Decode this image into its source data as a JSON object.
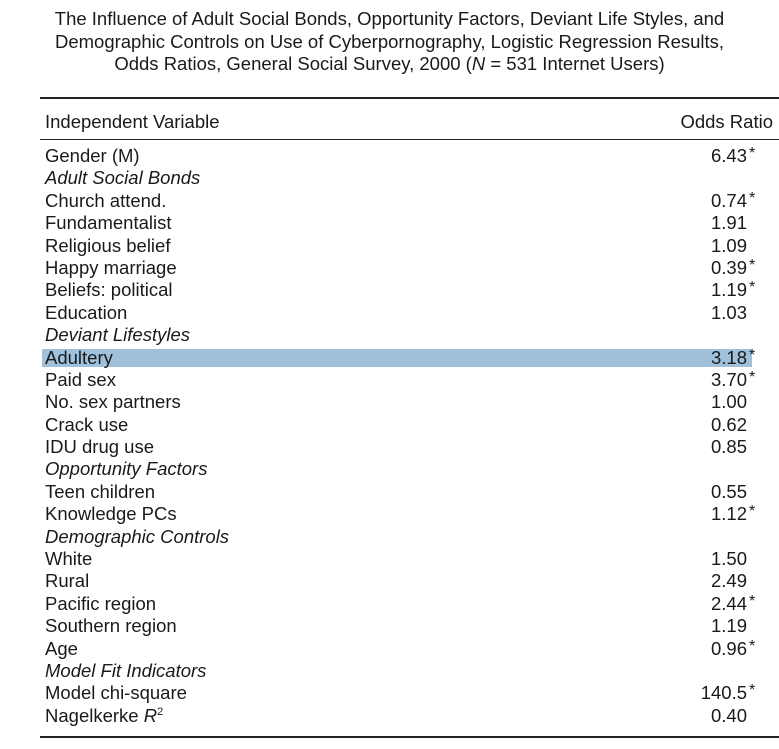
{
  "title": {
    "line1": "The Influence of Adult Social Bonds, Opportunity Factors, Deviant Life Styles, and",
    "line2": "Demographic Controls on Use of Cyberpornography, Logistic Regression Results,",
    "line3_pre": "Odds Ratios, General Social Survey, 2000 (",
    "line3_n": "N",
    "line3_post": " = 531 Internet Users)"
  },
  "header": {
    "left": "Independent Variable",
    "right": "Odds Ratio"
  },
  "rows": [
    {
      "label": "Gender (M)",
      "value": "6.43",
      "star": "*"
    },
    {
      "label": "Adult Social Bonds",
      "section": true
    },
    {
      "label": "Church attend.",
      "value": "0.74",
      "star": "*"
    },
    {
      "label": "Fundamentalist",
      "value": "1.91"
    },
    {
      "label": "Religious belief",
      "value": "1.09"
    },
    {
      "label": "Happy marriage",
      "value": "0.39",
      "star": "*"
    },
    {
      "label": "Beliefs: political",
      "value": "1.19",
      "star": "*"
    },
    {
      "label": "Education",
      "value": "1.03"
    },
    {
      "label": "Deviant Lifestyles",
      "section": true
    },
    {
      "label": "Adultery",
      "value": "3.18",
      "star": "*",
      "highlight": true
    },
    {
      "label": "Paid sex",
      "value": "3.70",
      "star": "*"
    },
    {
      "label": "No. sex partners",
      "value": "1.00"
    },
    {
      "label": "Crack use",
      "value": "0.62"
    },
    {
      "label": "IDU drug use",
      "value": "0.85"
    },
    {
      "label": "Opportunity Factors",
      "section": true
    },
    {
      "label": "Teen children",
      "value": "0.55"
    },
    {
      "label": "Knowledge PCs",
      "value": "1.12",
      "star": "*"
    },
    {
      "label": "Demographic Controls",
      "section": true
    },
    {
      "label": "White",
      "value": "1.50"
    },
    {
      "label": "Rural",
      "value": "2.49"
    },
    {
      "label": "Pacific region",
      "value": "2.44",
      "star": "*"
    },
    {
      "label": "Southern region",
      "value": "1.19"
    },
    {
      "label": "Age",
      "value": "0.96",
      "star": "*"
    },
    {
      "label": "Model Fit Indicators",
      "section": true
    },
    {
      "label": "Model chi-square",
      "value": "140.5",
      "star": "*"
    },
    {
      "label": "Nagelkerke ",
      "label_italic": "R",
      "label_sup": "2",
      "value": "0.40"
    }
  ]
}
